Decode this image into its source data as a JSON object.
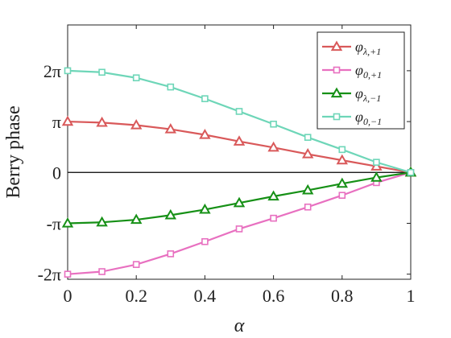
{
  "chart_data": {
    "type": "line",
    "xlabel": "α",
    "ylabel": "Berry phase",
    "xlim": [
      0,
      1
    ],
    "ylim": [
      -2.1,
      2.9
    ],
    "x_unit_note": "y values in units of π",
    "x": [
      0,
      0.1,
      0.2,
      0.3,
      0.4,
      0.5,
      0.6,
      0.7,
      0.8,
      0.9,
      1.0
    ],
    "x_ticks": [
      "0",
      "0.2",
      "0.4",
      "0.6",
      "0.8",
      "1"
    ],
    "x_tick_values": [
      0,
      0.2,
      0.4,
      0.6,
      0.8,
      1
    ],
    "y_ticks": [
      "-2π",
      "-π",
      "0",
      "π",
      "2π"
    ],
    "y_tick_values": [
      -2,
      -1,
      0,
      1,
      2
    ],
    "zero_line": true,
    "grid": false,
    "legend_position": "top-right",
    "series": [
      {
        "name": "φ_{λ,+1}",
        "symbol": "φ",
        "subscript": "λ,+1",
        "color": "#d9595a",
        "marker": "triangle",
        "values": [
          1.0,
          0.98,
          0.93,
          0.85,
          0.74,
          0.61,
          0.49,
          0.36,
          0.24,
          0.12,
          0.0
        ]
      },
      {
        "name": "φ_{0,+1}",
        "symbol": "φ",
        "subscript": "0,+1",
        "color": "#e870c0",
        "marker": "square",
        "values": [
          -2.0,
          -1.95,
          -1.81,
          -1.6,
          -1.36,
          -1.11,
          -0.9,
          -0.68,
          -0.45,
          -0.2,
          0.0
        ]
      },
      {
        "name": "φ_{λ,-1}",
        "symbol": "φ",
        "subscript": "λ,−1",
        "color": "#169016",
        "marker": "triangle",
        "values": [
          -1.0,
          -0.98,
          -0.93,
          -0.84,
          -0.73,
          -0.6,
          -0.47,
          -0.35,
          -0.22,
          -0.1,
          0.0
        ]
      },
      {
        "name": "φ_{0,-1}",
        "symbol": "φ",
        "subscript": "0,−1",
        "color": "#6ed6b8",
        "marker": "square",
        "values": [
          2.0,
          1.97,
          1.86,
          1.68,
          1.45,
          1.2,
          0.95,
          0.69,
          0.45,
          0.2,
          0.0
        ]
      }
    ]
  }
}
